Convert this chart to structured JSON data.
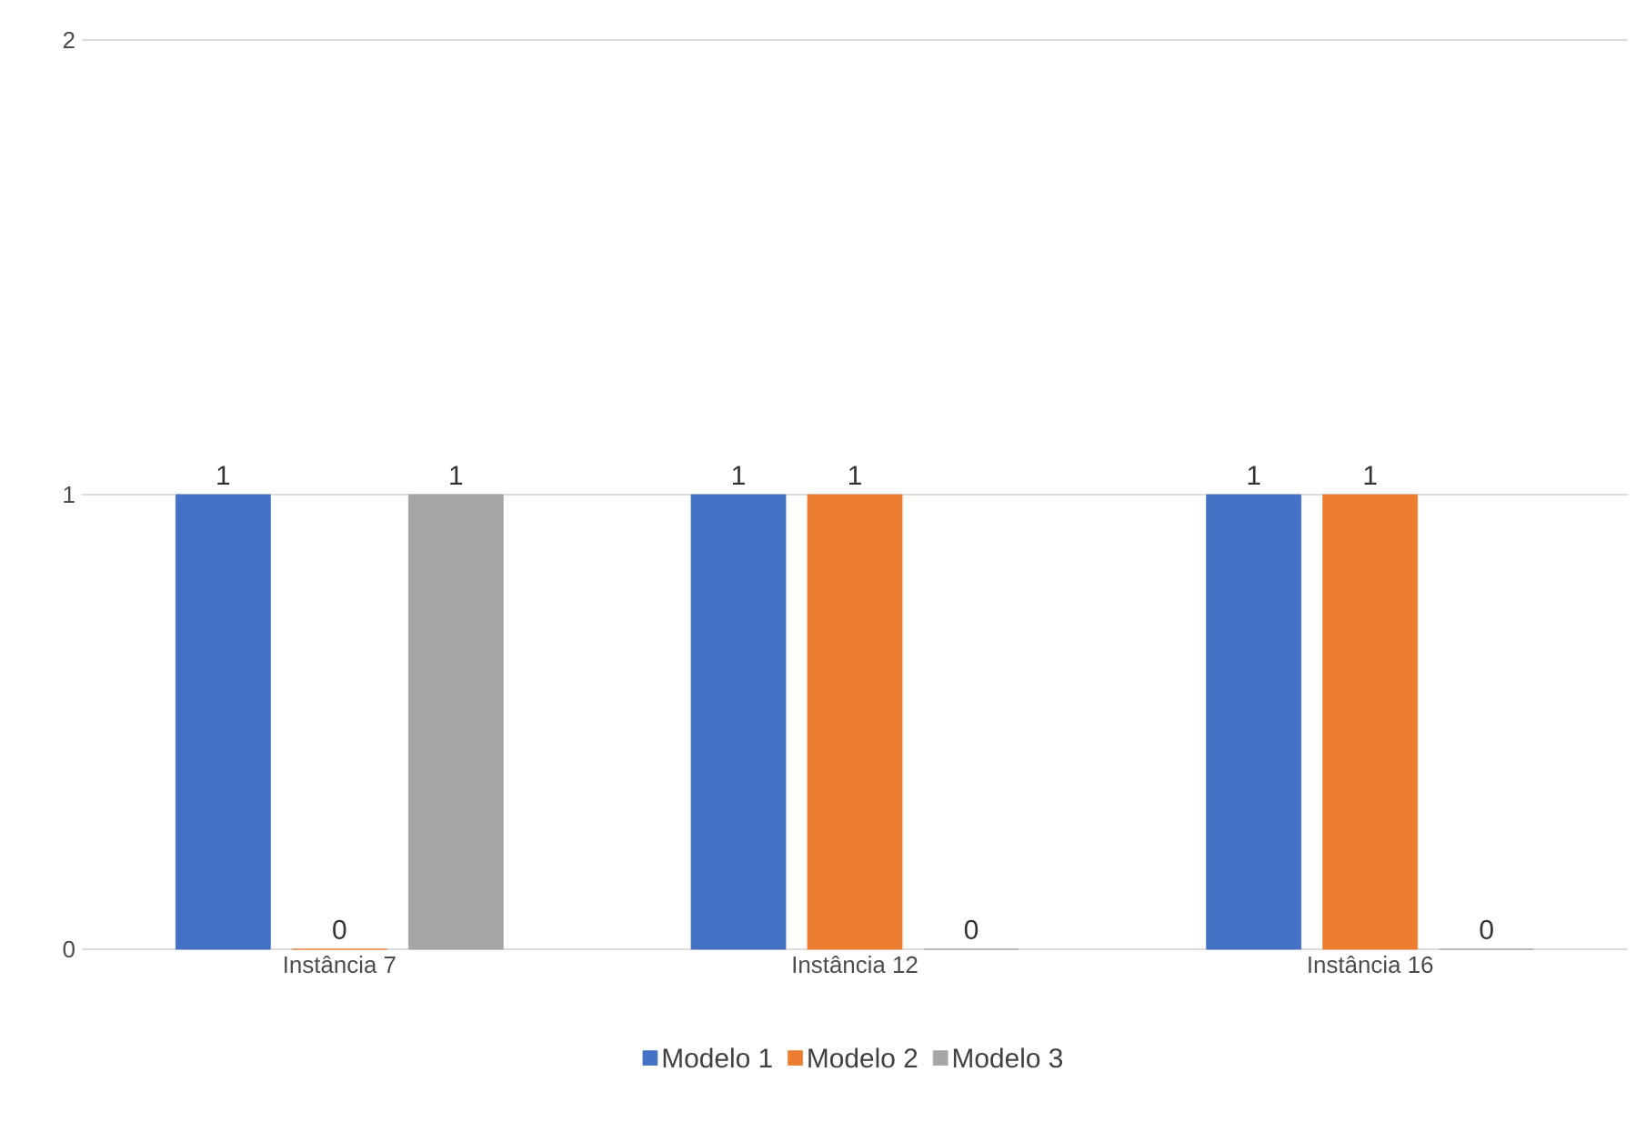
{
  "chart_data": {
    "type": "bar",
    "categories": [
      "Instância 7",
      "Instância 12",
      "Instância 16"
    ],
    "series": [
      {
        "name": "Modelo 1",
        "color": "#4472c4",
        "values": [
          1,
          1,
          1
        ],
        "value_labels": [
          "1",
          "1",
          "1"
        ]
      },
      {
        "name": "Modelo 2",
        "color": "#ed7d31",
        "values": [
          0,
          1,
          1
        ],
        "value_labels": [
          "0",
          "1",
          "1"
        ]
      },
      {
        "name": "Modelo 3",
        "color": "#a5a5a5",
        "values": [
          1,
          0,
          0
        ],
        "value_labels": [
          "1",
          "0",
          "0"
        ]
      }
    ],
    "ylim": [
      0,
      2
    ],
    "yticks": [
      0,
      1,
      2
    ],
    "grid": "y",
    "legend": "bottom"
  }
}
